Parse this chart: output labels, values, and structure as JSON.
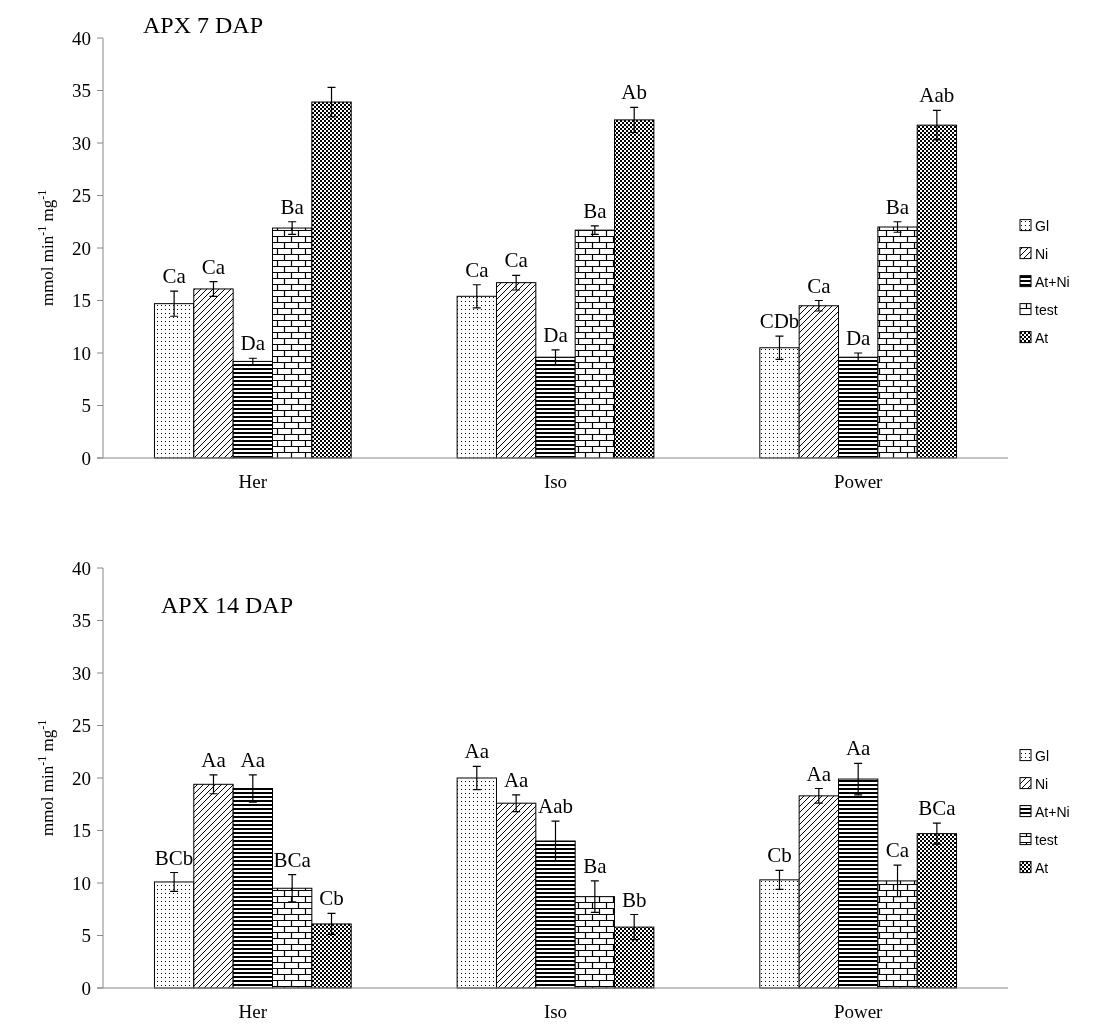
{
  "chart_data": [
    {
      "type": "bar",
      "title": "APX 7 DAP",
      "ylabel": "mmol min$^{-1}$ mg$^{-1}$",
      "categories": [
        "Her",
        "Iso",
        "Power"
      ],
      "ylim": [
        0,
        40
      ],
      "yticks": [
        0,
        5,
        10,
        15,
        20,
        25,
        30,
        35,
        40
      ],
      "grid": false,
      "legend": "right",
      "series": [
        {
          "name": "Gl",
          "color": "#000000",
          "values": [
            14.7,
            15.4,
            10.5
          ],
          "errors": [
            1.2,
            1.1,
            1.1
          ],
          "value_labels": [
            "Ca",
            "Ca",
            "CDb"
          ]
        },
        {
          "name": "Ni",
          "color": "#000000",
          "values": [
            16.1,
            16.7,
            14.5
          ],
          "errors": [
            0.7,
            0.7,
            0.5
          ],
          "value_labels": [
            "Ca",
            "Ca",
            "Ca"
          ]
        },
        {
          "name": "At+Ni",
          "color": "#000000",
          "values": [
            9.2,
            9.6,
            9.6
          ],
          "errors": [
            0.3,
            0.7,
            0.4
          ],
          "value_labels": [
            "Da",
            "Da",
            "Da"
          ]
        },
        {
          "name": "test",
          "color": "#000000",
          "values": [
            21.9,
            21.7,
            22.0
          ],
          "errors": [
            0.6,
            0.4,
            0.5
          ],
          "value_labels": [
            "Ba",
            "Ba",
            "Ba"
          ]
        },
        {
          "name": "At",
          "color": "#000000",
          "values": [
            33.9,
            32.2,
            31.7
          ],
          "errors": [
            1.4,
            1.2,
            1.4
          ],
          "value_labels": [
            null,
            "Ab",
            "Aab"
          ]
        }
      ]
    },
    {
      "type": "bar",
      "title": "APX 14 DAP",
      "ylabel": "mmol min$^{-1}$ mg$^{-1}$",
      "categories": [
        "Her",
        "Iso",
        "Power"
      ],
      "ylim": [
        0,
        40
      ],
      "yticks": [
        0,
        5,
        10,
        15,
        20,
        25,
        30,
        35,
        40
      ],
      "grid": false,
      "legend": "right",
      "series": [
        {
          "name": "Gl",
          "color": "#000000",
          "values": [
            10.1,
            20.0,
            10.3
          ],
          "errors": [
            0.9,
            1.1,
            0.9
          ],
          "value_labels": [
            "BCb",
            "Aa",
            "Cb"
          ]
        },
        {
          "name": "Ni",
          "color": "#000000",
          "values": [
            19.4,
            17.6,
            18.3
          ],
          "errors": [
            0.9,
            0.8,
            0.7
          ],
          "value_labels": [
            "Aa",
            "Aa",
            "Aa"
          ]
        },
        {
          "name": "At+Ni",
          "color": "#000000",
          "values": [
            19.0,
            14.0,
            19.9
          ],
          "errors": [
            1.3,
            1.9,
            1.5
          ],
          "value_labels": [
            "Aa",
            "Aab",
            "Aa"
          ]
        },
        {
          "name": "test",
          "color": "#000000",
          "values": [
            9.5,
            8.7,
            10.2
          ],
          "errors": [
            1.3,
            1.5,
            1.5
          ],
          "value_labels": [
            "BCa",
            "Ba",
            "Ca"
          ]
        },
        {
          "name": "At",
          "color": "#000000",
          "values": [
            6.1,
            5.8,
            14.7
          ],
          "errors": [
            1.0,
            1.2,
            1.0
          ],
          "value_labels": [
            "Cb",
            "Bb",
            "BCa"
          ]
        }
      ]
    }
  ]
}
